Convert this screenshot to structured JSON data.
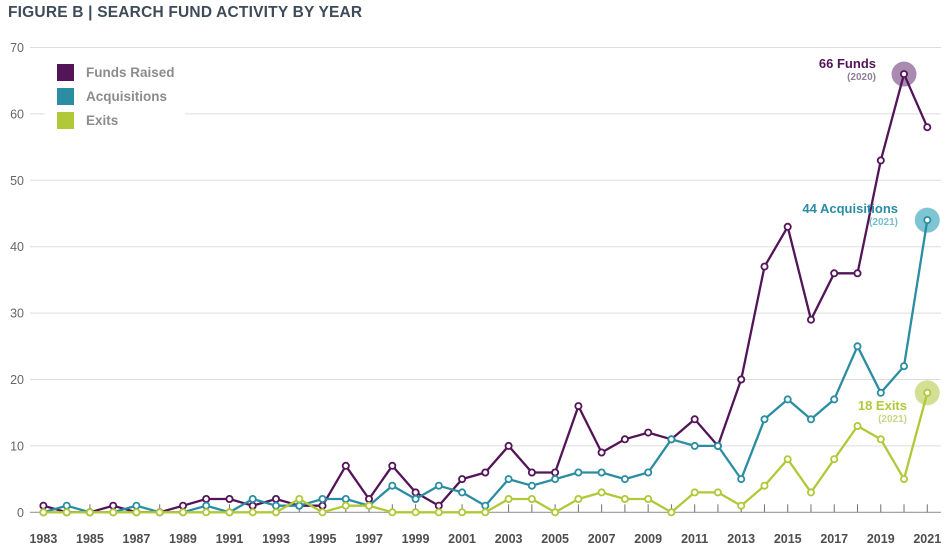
{
  "title": "FIGURE B | SEARCH FUND ACTIVITY BY YEAR",
  "colors": {
    "purple": "#531458",
    "teal": "#2b8da2",
    "green": "#b1c838",
    "highlight_purple": "#a98bb0",
    "highlight_teal": "#7ec4d2",
    "highlight_green": "#d2df95",
    "sub_purple": "#8f7f96",
    "sub_teal": "#76bccb",
    "sub_green": "#c8d687",
    "grid": "#dddddd",
    "axis": "#999999",
    "tick": "#707070",
    "x_label": "#4e4e4e",
    "y_label": "#666666",
    "legend_label": "#8c8c8c",
    "title_color": "#3e4b59"
  },
  "legend": {
    "items": [
      {
        "id": "funds-raised",
        "label": "Funds Raised",
        "color_key": "purple"
      },
      {
        "id": "acquisitions",
        "label": "Acquisitions",
        "color_key": "teal"
      },
      {
        "id": "exits",
        "label": "Exits",
        "color_key": "green"
      }
    ]
  },
  "annotations": {
    "funds": {
      "label": "66 Funds",
      "year": "(2020)",
      "color_key": "purple",
      "sub_color_key": "sub_purple"
    },
    "acquisitions": {
      "label": "44 Acquisitions",
      "year": "(2021)",
      "color_key": "teal",
      "sub_color_key": "sub_teal"
    },
    "exits": {
      "label": "18 Exits",
      "year": "(2021)",
      "color_key": "green",
      "sub_color_key": "sub_green"
    }
  },
  "chart_data": {
    "type": "line",
    "x": [
      1983,
      1984,
      1985,
      1986,
      1987,
      1988,
      1989,
      1990,
      1991,
      1992,
      1993,
      1994,
      1995,
      1996,
      1997,
      1998,
      1999,
      2000,
      2001,
      2002,
      2003,
      2004,
      2005,
      2006,
      2007,
      2008,
      2009,
      2010,
      2011,
      2012,
      2013,
      2014,
      2015,
      2016,
      2017,
      2018,
      2019,
      2020,
      2021
    ],
    "x_tick_labels": [
      1983,
      1985,
      1987,
      1989,
      1991,
      1993,
      1995,
      1997,
      1999,
      2001,
      2003,
      2005,
      2007,
      2009,
      2011,
      2013,
      2015,
      2017,
      2019,
      2021
    ],
    "y_ticks": [
      0,
      10,
      20,
      30,
      40,
      50,
      60,
      70
    ],
    "ylim": [
      0,
      70
    ],
    "grid": true,
    "legend_position": "top-left",
    "series": [
      {
        "name": "Funds Raised",
        "color_key": "purple",
        "highlight_color_key": "highlight_purple",
        "highlight_year": 2020,
        "values": [
          1,
          0,
          0,
          1,
          0,
          0,
          1,
          2,
          2,
          1,
          2,
          1,
          1,
          7,
          2,
          7,
          3,
          1,
          5,
          6,
          10,
          6,
          6,
          16,
          9,
          11,
          12,
          11,
          14,
          10,
          20,
          37,
          43,
          29,
          36,
          36,
          53,
          66,
          58
        ]
      },
      {
        "name": "Acquisitions",
        "color_key": "teal",
        "highlight_color_key": "highlight_teal",
        "highlight_year": 2021,
        "values": [
          0,
          1,
          0,
          0,
          1,
          0,
          0,
          1,
          0,
          2,
          1,
          1,
          2,
          2,
          1,
          4,
          2,
          4,
          3,
          1,
          5,
          4,
          5,
          6,
          6,
          5,
          6,
          11,
          10,
          10,
          5,
          14,
          17,
          14,
          17,
          25,
          18,
          22,
          44
        ]
      },
      {
        "name": "Exits",
        "color_key": "green",
        "highlight_color_key": "highlight_green",
        "highlight_year": 2021,
        "values": [
          0,
          0,
          0,
          0,
          0,
          0,
          0,
          0,
          0,
          0,
          0,
          2,
          0,
          1,
          1,
          0,
          0,
          0,
          0,
          0,
          2,
          2,
          0,
          2,
          3,
          2,
          2,
          0,
          3,
          3,
          1,
          4,
          8,
          3,
          8,
          13,
          11,
          5,
          18
        ]
      }
    ]
  }
}
